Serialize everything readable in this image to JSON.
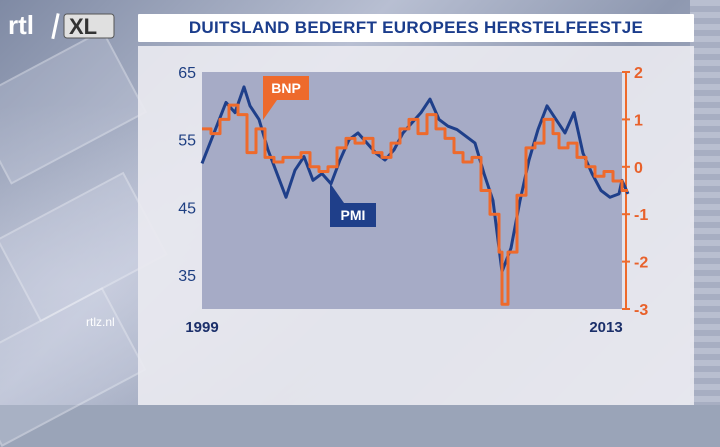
{
  "header": {
    "logo_text": "rtl XL",
    "title": "DUITSLAND BEDERFT EUROPEES HERSTELFEESTJE"
  },
  "footer": {
    "watermark": "rtlz.nl"
  },
  "colors": {
    "pmi": "#1f3f8a",
    "bnp": "#ee6a2c",
    "plot_bg": "#a6abc6",
    "title": "#1b3d8c"
  },
  "chart_data": {
    "type": "line",
    "title": "DUITSLAND BEDERFT EUROPEES HERSTELFEESTJE",
    "x_range": [
      1999,
      2013
    ],
    "x_tick_labels": [
      "1999",
      "2013"
    ],
    "y_left": {
      "ylim": [
        30,
        65
      ],
      "ticks": [
        35,
        45,
        55,
        65
      ]
    },
    "y_right": {
      "ylim": [
        -3,
        2
      ],
      "ticks": [
        -3,
        -2,
        -1,
        0,
        1,
        2
      ]
    },
    "grid": false,
    "series": [
      {
        "name": "PMI",
        "axis": "left",
        "style": "line",
        "label_position": "below-left",
        "points": [
          [
            1999.0,
            51.5
          ],
          [
            1999.4,
            56.0
          ],
          [
            1999.8,
            60.5
          ],
          [
            2000.1,
            59.0
          ],
          [
            2000.4,
            62.8
          ],
          [
            2000.6,
            60.0
          ],
          [
            2000.9,
            58.0
          ],
          [
            2001.2,
            53.5
          ],
          [
            2001.5,
            50.0
          ],
          [
            2001.8,
            46.5
          ],
          [
            2002.1,
            50.5
          ],
          [
            2002.4,
            52.5
          ],
          [
            2002.7,
            49.0
          ],
          [
            2003.0,
            50.0
          ],
          [
            2003.3,
            48.5
          ],
          [
            2003.6,
            52.0
          ],
          [
            2003.9,
            55.0
          ],
          [
            2004.2,
            56.0
          ],
          [
            2004.5,
            54.5
          ],
          [
            2004.8,
            53.0
          ],
          [
            2005.1,
            52.0
          ],
          [
            2005.4,
            53.5
          ],
          [
            2005.7,
            56.0
          ],
          [
            2006.0,
            57.5
          ],
          [
            2006.3,
            59.0
          ],
          [
            2006.6,
            61.0
          ],
          [
            2006.9,
            58.0
          ],
          [
            2007.2,
            57.0
          ],
          [
            2007.5,
            56.5
          ],
          [
            2007.8,
            55.5
          ],
          [
            2008.1,
            54.5
          ],
          [
            2008.4,
            50.0
          ],
          [
            2008.7,
            46.0
          ],
          [
            2009.0,
            35.5
          ],
          [
            2009.3,
            39.0
          ],
          [
            2009.6,
            46.0
          ],
          [
            2009.9,
            52.0
          ],
          [
            2010.2,
            56.5
          ],
          [
            2010.5,
            60.0
          ],
          [
            2010.8,
            58.0
          ],
          [
            2011.1,
            56.0
          ],
          [
            2011.4,
            59.0
          ],
          [
            2011.7,
            53.0
          ],
          [
            2012.0,
            50.0
          ],
          [
            2012.3,
            47.5
          ],
          [
            2012.6,
            46.5
          ],
          [
            2012.9,
            47.0
          ],
          [
            2013.0,
            49.0
          ],
          [
            2013.2,
            47.0
          ]
        ]
      },
      {
        "name": "BNP",
        "axis": "right",
        "style": "step",
        "label_position": "above-left",
        "points": [
          [
            1999.0,
            0.8
          ],
          [
            1999.3,
            0.7
          ],
          [
            1999.6,
            1.0
          ],
          [
            1999.9,
            1.3
          ],
          [
            2000.2,
            1.1
          ],
          [
            2000.5,
            0.3
          ],
          [
            2000.8,
            0.8
          ],
          [
            2001.1,
            0.2
          ],
          [
            2001.4,
            0.1
          ],
          [
            2001.7,
            0.2
          ],
          [
            2002.0,
            0.2
          ],
          [
            2002.3,
            0.3
          ],
          [
            2002.6,
            0.0
          ],
          [
            2002.9,
            -0.1
          ],
          [
            2003.2,
            0.0
          ],
          [
            2003.5,
            0.4
          ],
          [
            2003.8,
            0.6
          ],
          [
            2004.1,
            0.5
          ],
          [
            2004.4,
            0.6
          ],
          [
            2004.7,
            0.3
          ],
          [
            2005.0,
            0.2
          ],
          [
            2005.3,
            0.5
          ],
          [
            2005.6,
            0.8
          ],
          [
            2005.9,
            1.0
          ],
          [
            2006.2,
            0.7
          ],
          [
            2006.5,
            1.1
          ],
          [
            2006.8,
            0.8
          ],
          [
            2007.1,
            0.6
          ],
          [
            2007.4,
            0.3
          ],
          [
            2007.7,
            0.1
          ],
          [
            2008.0,
            0.2
          ],
          [
            2008.3,
            -0.5
          ],
          [
            2008.6,
            -1.0
          ],
          [
            2008.9,
            -1.8
          ],
          [
            2009.0,
            -2.9
          ],
          [
            2009.2,
            -1.8
          ],
          [
            2009.5,
            -0.6
          ],
          [
            2009.8,
            0.4
          ],
          [
            2010.1,
            0.5
          ],
          [
            2010.4,
            1.0
          ],
          [
            2010.7,
            0.7
          ],
          [
            2010.9,
            0.4
          ],
          [
            2011.2,
            0.5
          ],
          [
            2011.5,
            0.2
          ],
          [
            2011.8,
            0.0
          ],
          [
            2012.1,
            -0.2
          ],
          [
            2012.4,
            -0.1
          ],
          [
            2012.7,
            -0.3
          ],
          [
            2013.0,
            -0.5
          ]
        ]
      }
    ]
  }
}
